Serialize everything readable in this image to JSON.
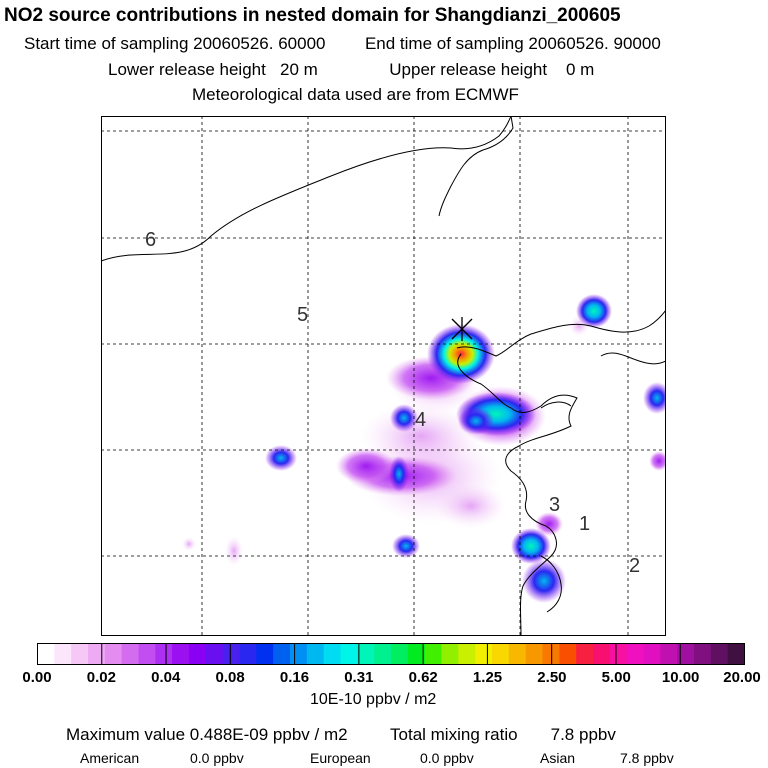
{
  "title": "NO2 source contributions in nested domain for Shangdianzi_200605",
  "sampling": {
    "start_label": "Start time of sampling 20060526. 60000",
    "end_label": "End time of sampling 20060526. 90000"
  },
  "release": {
    "lower_label": "Lower release height   20 m",
    "upper_label": "Upper release height    0 m"
  },
  "meteo": "Meteorological data used are from ECMWF",
  "map": {
    "site_labels": [
      "1",
      "2",
      "3",
      "4",
      "5",
      "6"
    ],
    "receptor_marker": "×"
  },
  "colorbar": {
    "tick_labels": [
      "0.00",
      "0.02",
      "0.04",
      "0.08",
      "0.16",
      "0.31",
      "0.62",
      "1.25",
      "2.50",
      "5.00",
      "10.00",
      "20.00"
    ],
    "colors": [
      "#ffffff",
      "#fbe6fb",
      "#f5c8f5",
      "#eeaaf2",
      "#e58cf0",
      "#d46cf0",
      "#c24ef2",
      "#ad2ff2",
      "#9a10f0",
      "#8a00f5",
      "#6a10f0",
      "#4a20ee",
      "#2a28f0",
      "#0030f0",
      "#0060f0",
      "#0090f4",
      "#00b8f0",
      "#00dcf2",
      "#00f5e8",
      "#00f5b8",
      "#00f090",
      "#00ee60",
      "#00ec20",
      "#40f000",
      "#90f000",
      "#c8f000",
      "#f0f000",
      "#f8d800",
      "#f8b800",
      "#f89800",
      "#f87800",
      "#f85000",
      "#f82040",
      "#f81070",
      "#f810a0",
      "#f010c0",
      "#e010c0",
      "#c010b0",
      "#a010a0",
      "#801080",
      "#601060",
      "#401040"
    ],
    "units": "10E-10 ppbv / m2"
  },
  "stats": {
    "max_value": "Maximum value  0.488E-09 ppbv / m2",
    "total": "Total mixing ratio       7.8 ppbv"
  },
  "regions": [
    {
      "name": "American",
      "value": "0.0 ppbv"
    },
    {
      "name": "European",
      "value": "0.0 ppbv"
    },
    {
      "name": "Asian",
      "value": "7.8 ppbv"
    }
  ]
}
